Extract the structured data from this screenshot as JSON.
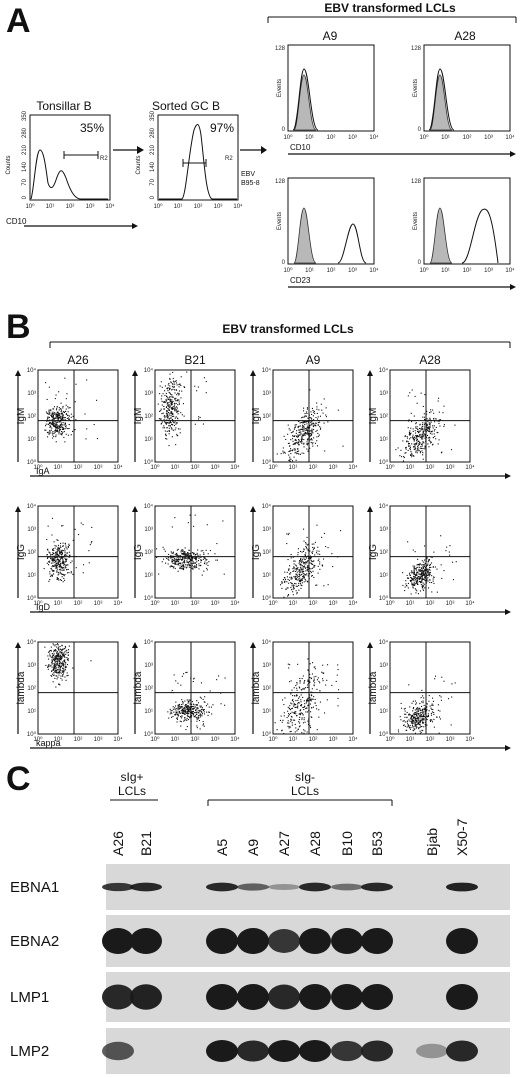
{
  "panel_a": {
    "letter": "A",
    "header": "EBV transformed LCLs",
    "tonsillar": {
      "title": "Tonsillar B",
      "percent": "35%",
      "gate": "R2",
      "xlabel": "CD10",
      "ylabel": "Counts",
      "yticks": [
        "0",
        "70",
        "140",
        "210",
        "280",
        "350"
      ],
      "xticks": [
        "10⁰",
        "10¹",
        "10²",
        "10³",
        "10⁴"
      ]
    },
    "sorted": {
      "title": "Sorted GC B",
      "percent": "97%",
      "gate": "R2",
      "ylabel": "Counts",
      "yticks": [
        "0",
        "70",
        "140",
        "210",
        "280",
        "350"
      ],
      "xticks": [
        "10⁰",
        "10¹",
        "10²",
        "10³",
        "10⁴"
      ]
    },
    "ebv_label": [
      "EBV",
      "B95-8"
    ],
    "hist": {
      "ylabel": "Events",
      "ytop": "128",
      "ybot": "0",
      "xticks": [
        "10⁰",
        "10¹",
        "10²",
        "10³",
        "10⁴"
      ]
    },
    "cols": [
      "A9",
      "A28"
    ],
    "rows": [
      "CD10",
      "CD23"
    ]
  },
  "panel_b": {
    "letter": "B",
    "header": "EBV transformed LCLs",
    "cols": [
      "A26",
      "B21",
      "A9",
      "A28"
    ],
    "rows": [
      {
        "ylabel": "IgM",
        "xlabel": "IgA"
      },
      {
        "ylabel": "IgG",
        "xlabel": "IgD"
      },
      {
        "ylabel": "lambda",
        "xlabel": "kappa"
      }
    ],
    "yticks": [
      "10⁰",
      "10¹",
      "10²",
      "10³",
      "10⁴"
    ],
    "xticks": [
      "10⁰",
      "10¹",
      "10²",
      "10³",
      "10⁴"
    ]
  },
  "panel_c": {
    "letter": "C",
    "group1": [
      "sIg+",
      "LCLs"
    ],
    "group2": [
      "sIg-",
      "LCLs"
    ],
    "lanes": [
      "A26",
      "B21",
      "A5",
      "A9",
      "A27",
      "A28",
      "B10",
      "B53",
      "Bjab",
      "X50-7"
    ],
    "blots": [
      "EBNA1",
      "EBNA2",
      "LMP1",
      "LMP2"
    ]
  }
}
